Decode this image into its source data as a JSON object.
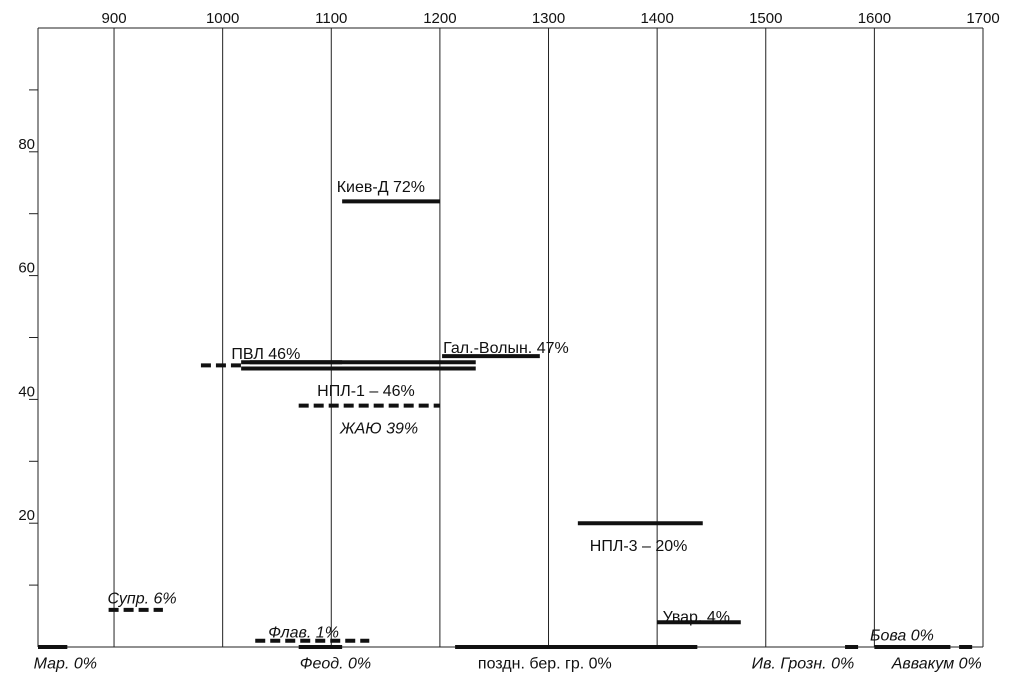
{
  "chart_data": {
    "type": "range-bar",
    "title": "",
    "xlabel": "",
    "ylabel": "",
    "xlim": [
      830,
      1700
    ],
    "ylim": [
      0,
      100
    ],
    "x_ticks": [
      900,
      1000,
      1100,
      1200,
      1300,
      1400,
      1500,
      1600,
      1700
    ],
    "x_tick_labels": [
      "900",
      "1000",
      "1100",
      "1200",
      "1300",
      "1400",
      "1500",
      "1600",
      "1700"
    ],
    "y_ticks": [
      10,
      20,
      30,
      40,
      50,
      60,
      70,
      80,
      90
    ],
    "y_tick_labels": [
      {
        "value": 20,
        "label": "20"
      },
      {
        "value": 40,
        "label": "40"
      },
      {
        "value": 60,
        "label": "60"
      },
      {
        "value": 80,
        "label": "80"
      }
    ],
    "grid_x": true,
    "legend": "none",
    "bars": [
      {
        "label": "Киев-Д 72%",
        "value": 72,
        "x_start": 1110,
        "x_end": 1200,
        "style": "solid",
        "italic": false,
        "label_x": 1105,
        "label_value": 74.5,
        "anchor": "start"
      },
      {
        "label": "ПВЛ 46%",
        "value": 46,
        "x_start": 1025,
        "x_end": 1110,
        "style": "solid",
        "italic": false,
        "label_x": 1008,
        "label_value": 47.5,
        "anchor": "start"
      },
      {
        "label": "",
        "value": 45.5,
        "x_start": 980,
        "x_end": 1020,
        "style": "dashed",
        "italic": false
      },
      {
        "label": "",
        "value": 45,
        "x_start": 1017,
        "x_end": 1233,
        "style": "solid",
        "italic": false
      },
      {
        "label": "НПЛ-1 – 46%",
        "value": 46,
        "x_start": 1017,
        "x_end": 1233,
        "style": "solid",
        "italic": false,
        "label_x": 1087,
        "label_value": 41.5,
        "anchor": "start"
      },
      {
        "label": "Гал.-Волын. 47%",
        "value": 47,
        "x_start": 1202,
        "x_end": 1292,
        "style": "solid",
        "italic": false,
        "label_x": 1203,
        "label_value": 48.5,
        "anchor": "start"
      },
      {
        "label": "ЖАЮ 39%",
        "value": 39,
        "x_start": 1070,
        "x_end": 1200,
        "style": "dashed",
        "italic": true,
        "label_x": 1108,
        "label_value": 35.5,
        "anchor": "start"
      },
      {
        "label": "НПЛ-3 – 20%",
        "value": 20,
        "x_start": 1327,
        "x_end": 1442,
        "style": "solid",
        "italic": false,
        "label_x": 1338,
        "label_value": 16.5,
        "anchor": "start"
      },
      {
        "label": "Супр. 6%",
        "value": 6,
        "x_start": 895,
        "x_end": 945,
        "style": "dashed",
        "italic": true,
        "label_x": 894,
        "label_value": 8,
        "anchor": "start"
      },
      {
        "label": "Флав. 1%",
        "value": 1,
        "x_start": 1030,
        "x_end": 1135,
        "style": "dashed",
        "italic": true,
        "label_x": 1042,
        "label_value": 2.5,
        "anchor": "start"
      },
      {
        "label": "Увар. 4%",
        "value": 4,
        "x_start": 1400,
        "x_end": 1477,
        "style": "solid",
        "italic": false,
        "label_x": 1405,
        "label_value": 5,
        "anchor": "start"
      },
      {
        "label": "Мар. 0%",
        "value": 0,
        "x_start": 830,
        "x_end": 857,
        "style": "solid",
        "italic": true,
        "label_x": 826,
        "label_value": -2.5,
        "anchor": "start"
      },
      {
        "label": "Феод. 0%",
        "value": 0,
        "x_start": 1070,
        "x_end": 1110,
        "style": "solid",
        "italic": true,
        "label_x": 1071,
        "label_value": -2.5,
        "anchor": "start"
      },
      {
        "label": "поздн. бер. гр. 0%",
        "value": 0,
        "x_start": 1214,
        "x_end": 1437,
        "style": "solid",
        "italic": false,
        "label_x": 1235,
        "label_value": -2.5,
        "anchor": "start"
      },
      {
        "label": "Ив. Грозн. 0%",
        "value": 0,
        "x_start": 1573,
        "x_end": 1585,
        "style": "solid",
        "italic": true,
        "label_x": 1487,
        "label_value": -2.5,
        "anchor": "start"
      },
      {
        "label": "Бова 0%",
        "value": 0,
        "x_start": 1600,
        "x_end": 1670,
        "style": "solid",
        "italic": true,
        "label_x": 1596,
        "label_value": 2,
        "anchor": "start"
      },
      {
        "label": "Аввакум 0%",
        "value": 0,
        "x_start": 1678,
        "x_end": 1690,
        "style": "solid",
        "italic": true,
        "label_x": 1616,
        "label_value": -2.5,
        "anchor": "start"
      }
    ]
  }
}
